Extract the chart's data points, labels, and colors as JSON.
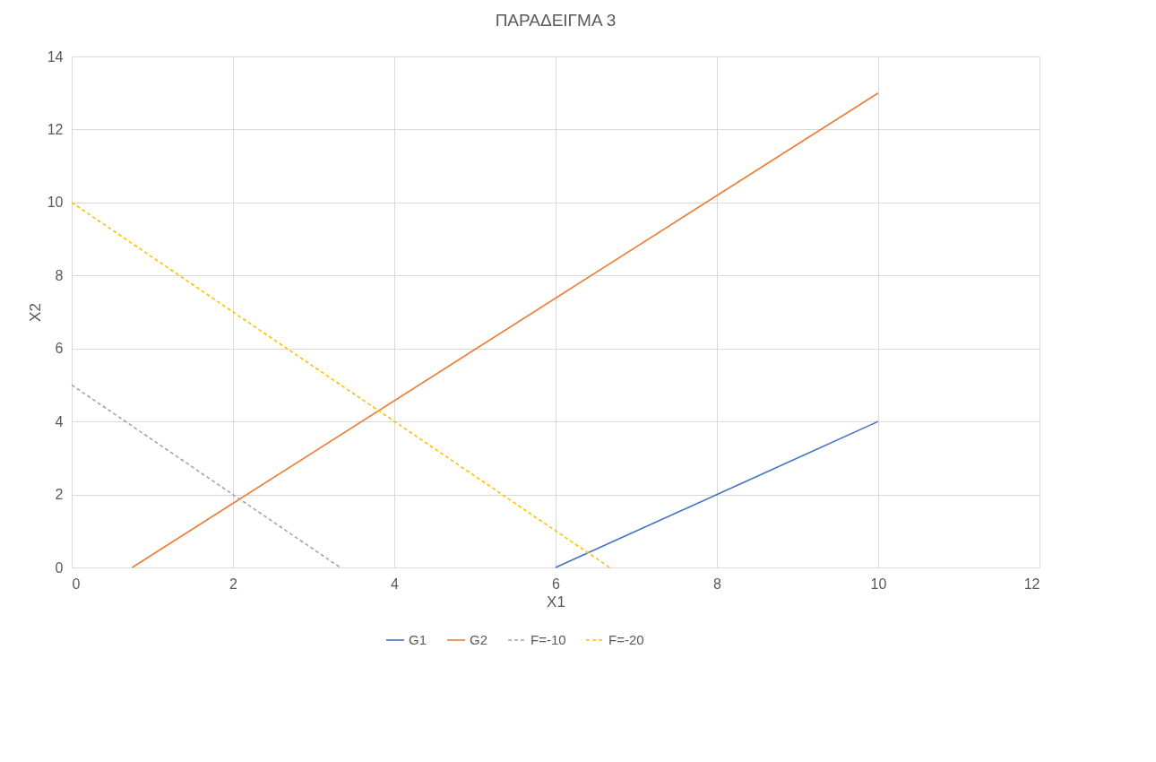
{
  "chart_data": {
    "type": "line",
    "title": "ΠΑΡΑΔΕΙΓΜΑ 3",
    "xlabel": "X1",
    "ylabel": "X2",
    "series": [
      {
        "name": "G1",
        "color": "#4472c4",
        "x": [
          6,
          10
        ],
        "values": [
          0,
          4
        ]
      },
      {
        "name": "G2",
        "color": "#ed7d31",
        "x": [
          0.75,
          10
        ],
        "values": [
          0,
          13
        ]
      },
      {
        "name": "F=-10",
        "color": "#a5a5a5",
        "x": [
          0,
          3.33
        ],
        "values": [
          5,
          0
        ],
        "line_style": "dashed"
      },
      {
        "name": "F=-20",
        "color": "#ffc000",
        "x": [
          0,
          6.67
        ],
        "values": [
          10,
          0
        ],
        "line_style": "dashed"
      }
    ],
    "xlim": [
      0,
      12
    ],
    "xticks": [
      0,
      2,
      4,
      6,
      8,
      10,
      12
    ],
    "ylim": [
      0,
      14
    ],
    "yticks": [
      0,
      2,
      4,
      6,
      8,
      10,
      12,
      14
    ],
    "grid": true,
    "legend": "bottom",
    "marker": "none"
  }
}
